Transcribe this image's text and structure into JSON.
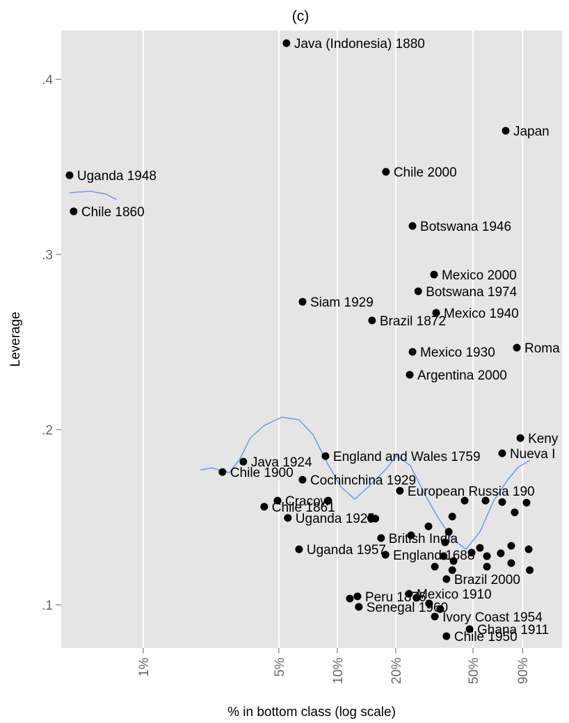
{
  "chart_data": {
    "type": "scatter",
    "title": "(c)",
    "xlabel": "% in bottom class (log scale)",
    "ylabel": "Leverage",
    "xscale": "log",
    "xlim": [
      0.378,
      143.8
    ],
    "ylim": [
      0.0754,
      0.4278
    ],
    "xticks": [
      {
        "value": 1,
        "label": "1%"
      },
      {
        "value": 5,
        "label": "5%"
      },
      {
        "value": 10,
        "label": "10%"
      },
      {
        "value": 20,
        "label": "20%"
      },
      {
        "value": 50,
        "label": "50%"
      },
      {
        "value": 90,
        "label": "90%"
      }
    ],
    "yticks": [
      {
        "value": 0.1,
        "label": ".1"
      },
      {
        "value": 0.2,
        "label": ".2"
      },
      {
        "value": 0.3,
        "label": ".3"
      },
      {
        "value": 0.4,
        "label": ".4"
      }
    ],
    "grid": true,
    "color": "#000000",
    "line_color": "#6a9ae8",
    "points": {
      "labels": [
        "Java (Indonesia) 1880",
        "Japan",
        "Uganda 1948",
        "Chile 1860",
        "Chile 2000",
        "Botswana 1946",
        "Mexico 2000",
        "Botswana 1974",
        "Siam 1929",
        "Mexico 1940",
        "Brazil 1872",
        "Mexico 1930",
        "Roma",
        "Argentina 2000",
        "Keny",
        "Nueva I",
        "England and Wales 1759",
        "Java 1924",
        "Chile 1900",
        "Cochinchina 1929",
        "European Russia 190",
        "Cracow",
        "Chile 1861",
        "Uganda 1925",
        "Uganda 1957",
        "British India",
        "England 1688",
        "Peru 1876",
        "Senegal 1960",
        "Mexico 1910",
        "Chile 1950",
        "Ghana 1911",
        "Brazil 2000",
        "Ivory Coast 1954"
      ],
      "x": [
        5.47,
        73.7,
        0.417,
        0.438,
        17.8,
        24.4,
        31.5,
        26.1,
        6.62,
        32.3,
        15.1,
        24.4,
        84.1,
        23.6,
        87.7,
        70.7,
        8.69,
        3.28,
        2.56,
        6.62,
        21.0,
        4.92,
        4.2,
        5.56,
        6.35,
        16.8,
        17.7,
        12.7,
        12.9,
        23.4,
        36.5,
        48.0,
        36.5,
        31.8
      ],
      "y": [
        0.4206,
        0.3706,
        0.3452,
        0.3246,
        0.3472,
        0.3163,
        0.2885,
        0.279,
        0.273,
        0.2667,
        0.2623,
        0.2444,
        0.2468,
        0.2313,
        0.1952,
        0.1865,
        0.1849,
        0.1817,
        0.1758,
        0.1714,
        0.1651,
        0.1595,
        0.156,
        0.1496,
        0.1317,
        0.1381,
        0.1286,
        0.1048,
        0.0988,
        0.1063,
        0.0821,
        0.0861,
        0.1147,
        0.0933
      ]
    },
    "extra_points": {
      "x": [
        58.0,
        70.7,
        82.0,
        94.4,
        37.5,
        29.5,
        24.0,
        35.9,
        54.3,
        49.2,
        59.0,
        69.5,
        78.7,
        96.8,
        35.3,
        39.7,
        39.1,
        31.8,
        59.0,
        98.0,
        78.7,
        33.9,
        29.7,
        25.6,
        11.6,
        8.98,
        14.9,
        15.7,
        39.1,
        45.3
      ],
      "y": [
        0.1595,
        0.1587,
        0.1528,
        0.1583,
        0.1417,
        0.1448,
        0.1397,
        0.1357,
        0.1325,
        0.1298,
        0.1278,
        0.1294,
        0.1337,
        0.1317,
        0.1278,
        0.125,
        0.1198,
        0.1218,
        0.1218,
        0.1198,
        0.1238,
        0.0976,
        0.1008,
        0.104,
        0.1036,
        0.1595,
        0.1496,
        0.1492,
        0.1504,
        0.1595
      ]
    },
    "smooth": {
      "x": [
        0.417,
        0.534,
        0.641,
        0.731,
        null,
        1.97,
        2.26,
        2.78,
        3.15,
        3.56,
        4.2,
        5.17,
        6.35,
        7.49,
        8.84,
        10.4,
        12.3,
        14.5,
        17.8,
        20.2,
        23.8,
        28.1,
        33.1,
        39.1,
        46.0,
        54.3,
        64.0,
        75.5,
        85.5,
        98.4
      ],
      "y": [
        0.3353,
        0.3361,
        0.3345,
        0.3313,
        null,
        0.177,
        0.1782,
        0.1754,
        0.1833,
        0.1952,
        0.2024,
        0.2071,
        0.2056,
        0.1972,
        0.1813,
        0.1675,
        0.1603,
        0.1675,
        0.1774,
        0.1853,
        0.1794,
        0.1635,
        0.1496,
        0.1377,
        0.1317,
        0.1417,
        0.1595,
        0.1714,
        0.1786,
        0.1825
      ]
    }
  }
}
